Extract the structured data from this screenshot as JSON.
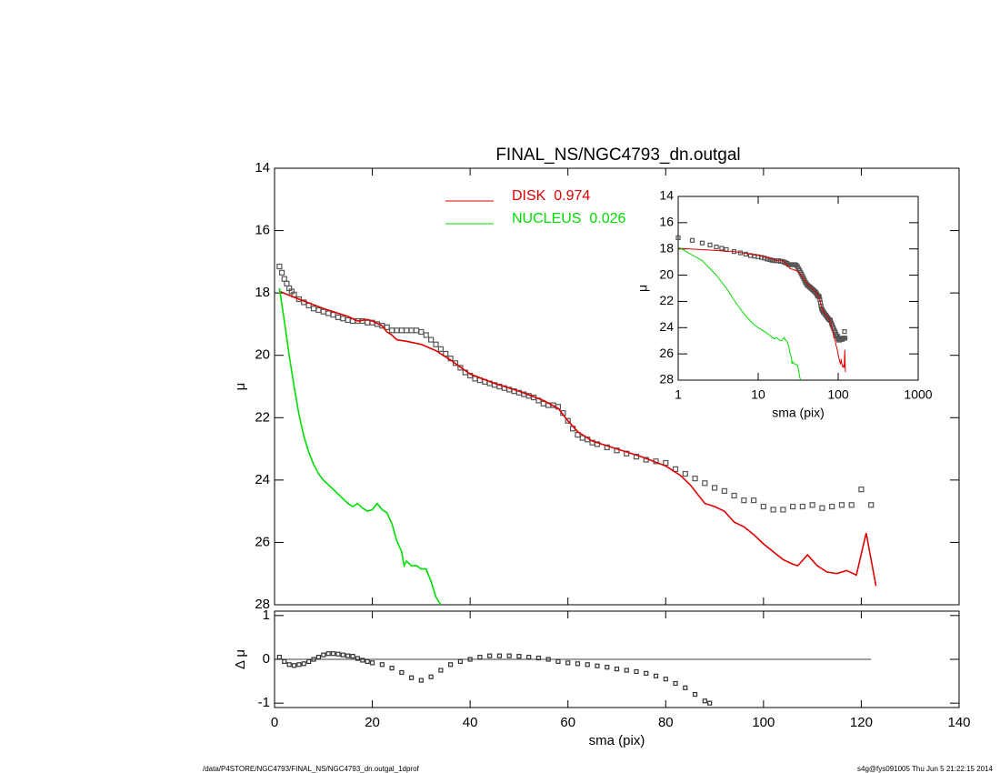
{
  "chart_data": [
    {
      "type": "line",
      "title": "FINAL_NS/NGC4793_dn.outgal",
      "ylabel": "μ",
      "xlim": [
        0,
        140
      ],
      "ylim": [
        28,
        14
      ],
      "xticks": [
        0,
        20,
        40,
        60,
        80,
        100,
        120,
        140
      ],
      "yticks": [
        14,
        16,
        18,
        20,
        22,
        24,
        26,
        28
      ],
      "series": [
        {
          "color": "#555555",
          "marker": "square",
          "x": [
            1,
            1.5,
            2,
            2.5,
            3,
            3.5,
            4,
            5,
            6,
            7,
            8,
            9,
            10,
            11,
            12,
            13,
            14,
            15,
            16,
            17,
            18,
            19,
            20,
            21,
            22,
            23,
            24,
            25,
            26,
            27,
            28,
            29,
            30,
            31,
            32,
            33,
            34,
            35,
            36,
            37,
            38,
            39,
            40,
            41,
            42,
            43,
            44,
            45,
            46,
            47,
            48,
            49,
            50,
            51,
            52,
            53,
            54,
            55,
            56,
            57,
            58,
            59,
            60,
            61,
            62,
            63,
            64,
            65,
            66,
            68,
            70,
            72,
            74,
            76,
            78,
            80,
            82,
            84,
            86,
            88,
            90,
            92,
            94,
            96,
            98,
            100,
            102,
            104,
            106,
            108,
            110,
            112,
            114,
            116,
            118,
            120,
            122
          ],
          "values": [
            17.15,
            17.35,
            17.55,
            17.7,
            17.85,
            17.95,
            18.05,
            18.2,
            18.3,
            18.4,
            18.5,
            18.55,
            18.6,
            18.65,
            18.7,
            18.78,
            18.82,
            18.87,
            18.9,
            18.9,
            18.9,
            18.95,
            18.95,
            19.0,
            19.05,
            19.1,
            19.2,
            19.2,
            19.2,
            19.2,
            19.2,
            19.2,
            19.25,
            19.35,
            19.5,
            19.65,
            19.8,
            19.95,
            20.1,
            20.25,
            20.4,
            20.55,
            20.65,
            20.75,
            20.8,
            20.85,
            20.9,
            20.95,
            21.0,
            21.05,
            21.1,
            21.15,
            21.2,
            21.25,
            21.3,
            21.35,
            21.45,
            21.55,
            21.6,
            21.6,
            21.65,
            21.85,
            22.1,
            22.35,
            22.55,
            22.65,
            22.7,
            22.8,
            22.85,
            22.95,
            23.05,
            23.15,
            23.25,
            23.35,
            23.4,
            23.45,
            23.65,
            23.8,
            23.95,
            24.1,
            24.25,
            24.35,
            24.5,
            24.65,
            24.65,
            24.85,
            24.95,
            24.95,
            24.85,
            24.85,
            24.8,
            24.9,
            24.85,
            24.8,
            24.8,
            24.3,
            24.8
          ]
        },
        {
          "name": "DISK  0.974",
          "color": "#e00000",
          "x": [
            1,
            5,
            10,
            15,
            17,
            19,
            20,
            22,
            23,
            24,
            25,
            27,
            30,
            33,
            36,
            40,
            45,
            50,
            55,
            58,
            60,
            62,
            65,
            70,
            75,
            80,
            83,
            85,
            88,
            90,
            92,
            94,
            96,
            98,
            100,
            102,
            104,
            106,
            107,
            109,
            111,
            113,
            115,
            117,
            119,
            121,
            123
          ],
          "values": [
            17.95,
            18.2,
            18.5,
            18.75,
            18.9,
            18.85,
            18.9,
            19.05,
            19.25,
            19.35,
            19.5,
            19.55,
            19.65,
            19.85,
            20.15,
            20.6,
            20.9,
            21.15,
            21.45,
            21.7,
            22.1,
            22.45,
            22.75,
            23.0,
            23.25,
            23.55,
            23.85,
            24.15,
            24.75,
            24.85,
            25.0,
            25.35,
            25.5,
            25.75,
            26.05,
            26.3,
            26.55,
            26.7,
            26.75,
            26.4,
            26.75,
            26.95,
            27.0,
            26.9,
            27.05,
            25.7,
            27.4
          ]
        },
        {
          "name": "NUCLEUS  0.026",
          "color": "#00dd00",
          "x": [
            1,
            2,
            3,
            4,
            5,
            6,
            7,
            8,
            9,
            10,
            12,
            14,
            15,
            16,
            17,
            18,
            19,
            20,
            21,
            22,
            23,
            24,
            25,
            26,
            26.5,
            27,
            28,
            29,
            30,
            31,
            32,
            33,
            34
          ],
          "values": [
            17.85,
            18.9,
            20.0,
            21.0,
            21.9,
            22.6,
            23.1,
            23.5,
            23.8,
            24.0,
            24.3,
            24.6,
            24.75,
            24.85,
            24.75,
            24.9,
            25.0,
            24.95,
            24.75,
            24.95,
            25.05,
            25.4,
            25.95,
            26.3,
            26.75,
            26.6,
            26.75,
            26.75,
            26.85,
            26.85,
            27.25,
            27.75,
            28.0
          ]
        }
      ]
    },
    {
      "type": "scatter",
      "ylabel": "Δ μ",
      "xlabel": "sma (pix)",
      "xlim": [
        0,
        140
      ],
      "ylim": [
        -1.1,
        1.1
      ],
      "xticks": [
        0,
        20,
        40,
        60,
        80,
        100,
        120,
        140
      ],
      "yticks": [
        -1,
        0,
        1
      ],
      "hline": 0,
      "series": [
        {
          "color": "#333333",
          "marker": "square",
          "x": [
            1,
            2,
            3,
            4,
            5,
            6,
            7,
            8,
            9,
            10,
            11,
            12,
            13,
            14,
            15,
            16,
            17,
            18,
            19,
            20,
            22,
            24,
            26,
            28,
            30,
            32,
            34,
            36,
            38,
            40,
            42,
            44,
            46,
            48,
            50,
            52,
            54,
            56,
            58,
            60,
            62,
            64,
            66,
            68,
            70,
            72,
            74,
            76,
            78,
            80,
            82,
            84,
            86,
            88,
            89
          ],
          "values": [
            0.05,
            -0.05,
            -0.12,
            -0.14,
            -0.12,
            -0.1,
            -0.05,
            0.0,
            0.05,
            0.1,
            0.13,
            0.13,
            0.12,
            0.1,
            0.08,
            0.07,
            0.02,
            -0.02,
            -0.05,
            -0.08,
            -0.12,
            -0.2,
            -0.3,
            -0.42,
            -0.48,
            -0.4,
            -0.25,
            -0.12,
            -0.05,
            0.0,
            0.05,
            0.08,
            0.08,
            0.08,
            0.07,
            0.05,
            0.03,
            0.0,
            -0.05,
            -0.08,
            -0.1,
            -0.12,
            -0.15,
            -0.18,
            -0.22,
            -0.25,
            -0.28,
            -0.32,
            -0.38,
            -0.45,
            -0.55,
            -0.65,
            -0.8,
            -0.95,
            -1.0
          ]
        }
      ]
    },
    {
      "type": "line",
      "log_x": true,
      "xlabel": "sma (pix)",
      "ylabel": "μ",
      "xlim": [
        1,
        1000
      ],
      "ylim": [
        28,
        14
      ],
      "xticks": [
        1,
        10,
        100,
        1000
      ],
      "yticks": [
        14,
        16,
        18,
        20,
        22,
        24,
        26,
        28
      ]
    }
  ],
  "footer": {
    "left": "/data/P4STORE/NGC4793/FINAL_NS/NGC4793_dn.outgal_1dprof",
    "right": "s4g@fys091005  Thu Jun  5 21:22:15 2014"
  }
}
